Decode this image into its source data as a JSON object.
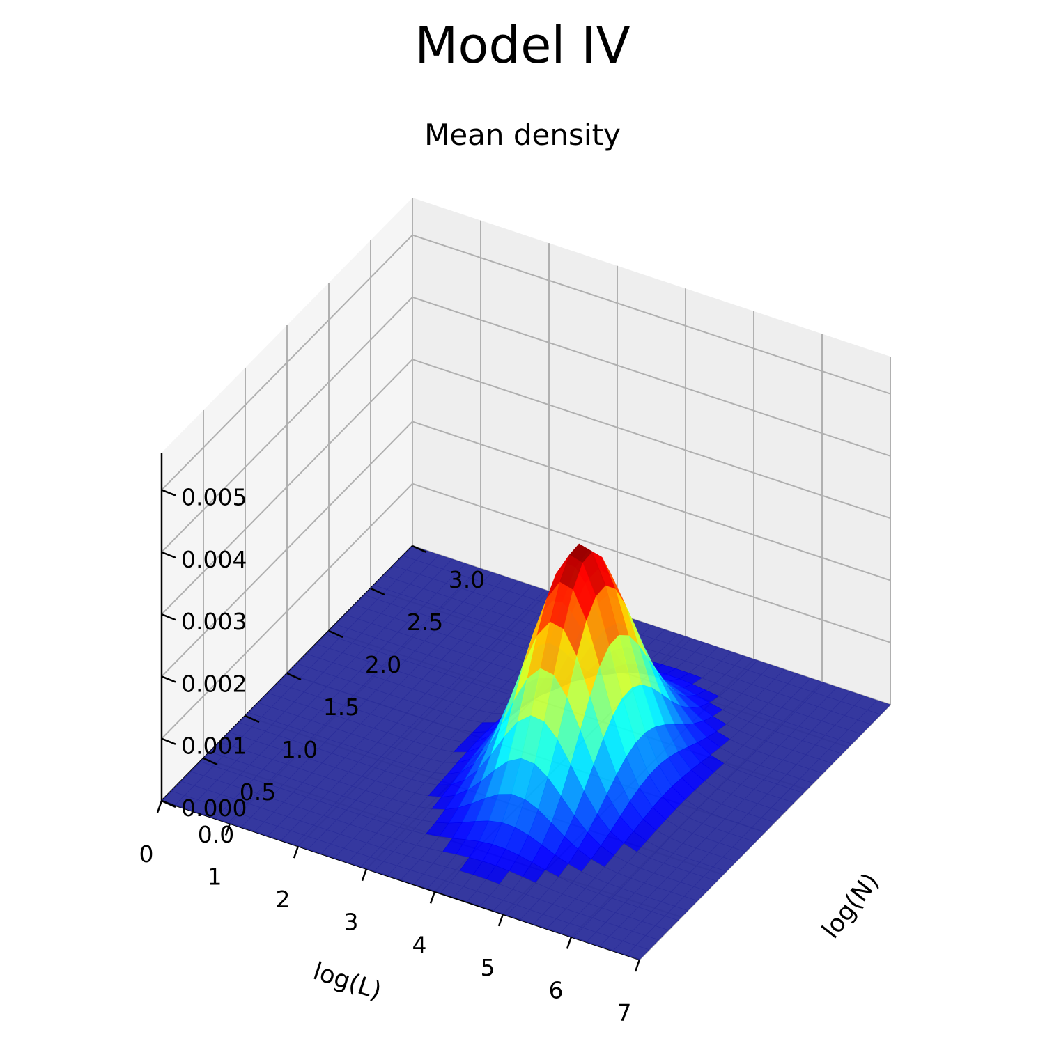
{
  "figure": {
    "suptitle": "Model IV",
    "subtitle": "Mean density"
  },
  "chart_data": {
    "type": "surface",
    "title": "Mean density",
    "xlabel": "log(L)",
    "ylabel": "log(N)",
    "zlabel": "",
    "xlim": [
      0,
      7
    ],
    "ylim": [
      0,
      3
    ],
    "zlim": [
      0,
      0.0056
    ],
    "x_ticks": [
      "0",
      "1",
      "2",
      "3",
      "4",
      "5",
      "6",
      "7"
    ],
    "y_ticks": [
      "0.0",
      "0.5",
      "1.0",
      "1.5",
      "2.0",
      "2.5",
      "3.0"
    ],
    "z_ticks": [
      "0.000",
      "0.001",
      "0.002",
      "0.003",
      "0.004",
      "0.005"
    ],
    "colormap": "jet",
    "grid": true,
    "surface": {
      "function": "gaussian_peak",
      "peak_value": 0.0037,
      "peak_log_L": 4.35,
      "peak_log_N": 1.45,
      "sigma_log_L": 0.55,
      "sigma_log_N": 0.42
    },
    "colors": {
      "pane_left": "#f5f5f5",
      "pane_back": "#eeeeee",
      "pane_floor": "#f2f2f2",
      "grid_line": "#b0b0b0",
      "surface_base": "#2a2d9a"
    }
  }
}
